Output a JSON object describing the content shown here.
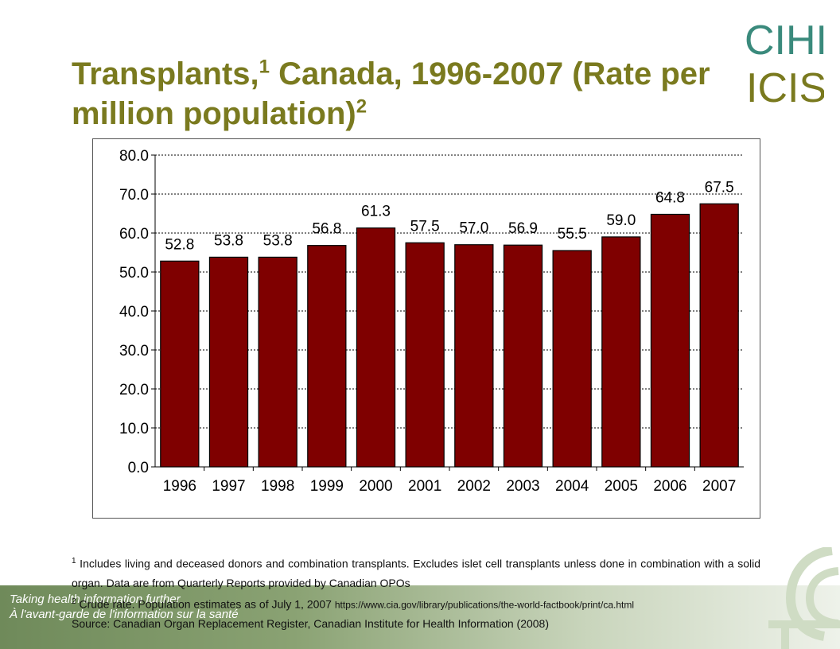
{
  "title": {
    "part1": "Transplants,",
    "sup1": "1",
    "part2": " Canada, 1996-2007 (Rate per million population)",
    "sup2": "2"
  },
  "logo": {
    "line1": "CIHI",
    "line2": "ICIS"
  },
  "tagline": {
    "line1": "Taking health information further",
    "line2": "À l'avant-garde de l'information sur la santé"
  },
  "notes": {
    "note1_num": "1",
    "note1": " Includes living and deceased donors and combination transplants. Excludes islet cell transplants unless done in combination with a solid organ. Data are from Quarterly Reports provided by Canadian OPOs",
    "note2_num": "2",
    "note2": " Crude rate. Population estimates as of July 1, 2007 ",
    "note2_url": "https://www.cia.gov/library/publications/the-world-factbook/print/ca.html",
    "source": "Source: Canadian Organ Replacement Register, Canadian Institute for Health Information (2008)"
  },
  "colors": {
    "bar": "#7f0000",
    "title": "#7a7a1f",
    "logo": "#3a8a7c",
    "band": "#7f9a68"
  },
  "chart_data": {
    "type": "bar",
    "title": "",
    "xlabel": "",
    "ylabel": "",
    "categories": [
      "1996",
      "1997",
      "1998",
      "1999",
      "2000",
      "2001",
      "2002",
      "2003",
      "2004",
      "2005",
      "2006",
      "2007"
    ],
    "values": [
      52.8,
      53.8,
      53.8,
      56.8,
      61.3,
      57.5,
      57.0,
      56.9,
      55.5,
      59.0,
      64.8,
      67.5
    ],
    "value_labels": [
      "52.8",
      "53.8",
      "53.8",
      "56.8",
      "61.3",
      "57.5",
      "57.0",
      "56.9",
      "55.5",
      "59.0",
      "64.8",
      "67.5"
    ],
    "ylim": [
      0,
      80
    ],
    "yticks": [
      "0.0",
      "10.0",
      "20.0",
      "30.0",
      "40.0",
      "50.0",
      "60.0",
      "70.0",
      "80.0"
    ],
    "grid": true
  }
}
